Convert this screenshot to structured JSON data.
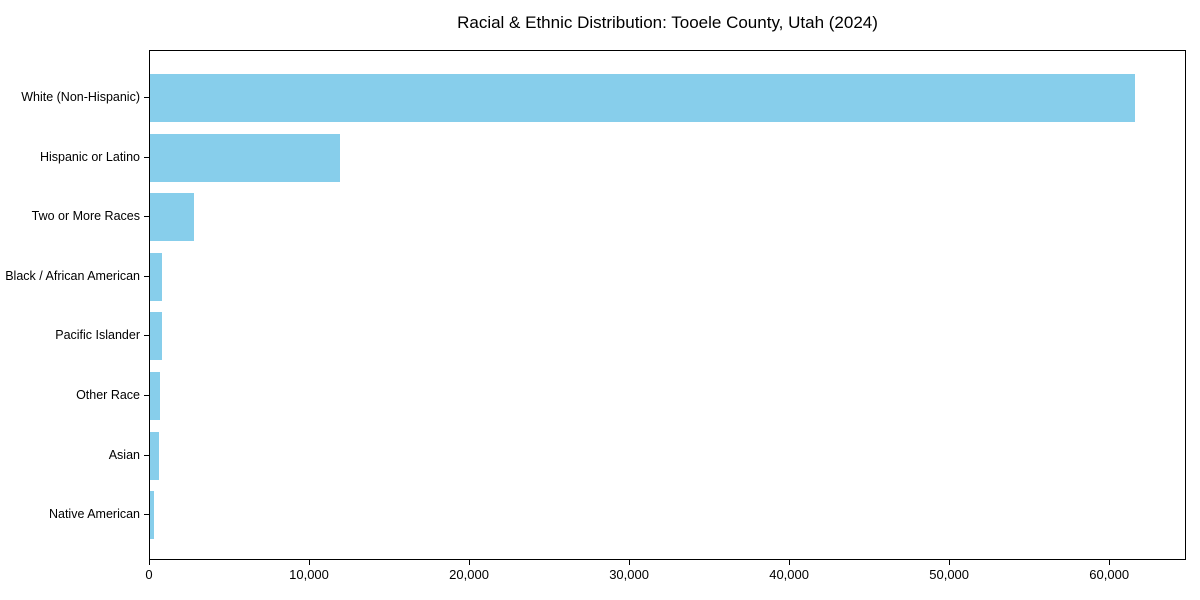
{
  "chart_data": {
    "type": "bar",
    "orientation": "horizontal",
    "title": "Racial & Ethnic Distribution: Tooele County, Utah (2024)",
    "categories": [
      "White (Non-Hispanic)",
      "Hispanic or Latino",
      "Two or More Races",
      "Black / African American",
      "Pacific Islander",
      "Other Race",
      "Asian",
      "Native American"
    ],
    "values": [
      61700,
      11900,
      2750,
      770,
      730,
      630,
      560,
      270
    ],
    "xlabel": "",
    "ylabel": "",
    "xlim": [
      0,
      64800
    ],
    "xtick_values": [
      0,
      10000,
      20000,
      30000,
      40000,
      50000,
      60000
    ],
    "xtick_labels": [
      "0",
      "10,000",
      "20,000",
      "30,000",
      "40,000",
      "50,000",
      "60,000"
    ],
    "bar_color": "#87CEEB",
    "grid": false,
    "legend": null,
    "background_color": "#ffffff",
    "spine_color": "#000000"
  }
}
